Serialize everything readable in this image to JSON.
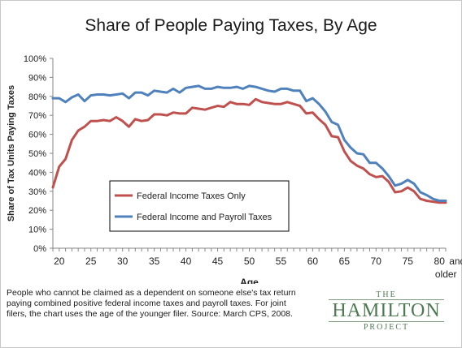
{
  "chart_data": {
    "type": "line",
    "title": "Share of People Paying Taxes, By Age",
    "xlabel": "Age",
    "ylabel": "Share of Tax Units Paying Taxes",
    "ylim": [
      0,
      100
    ],
    "xlim": [
      19,
      81
    ],
    "yticks": [
      0,
      10,
      20,
      30,
      40,
      50,
      60,
      70,
      80,
      90,
      100
    ],
    "ytick_labels": [
      "0%",
      "10%",
      "20%",
      "30%",
      "40%",
      "50%",
      "60%",
      "70%",
      "80%",
      "90%",
      "100%"
    ],
    "xticks": [
      20,
      25,
      30,
      35,
      40,
      45,
      50,
      55,
      60,
      65,
      70,
      75,
      80
    ],
    "xtick_labels": [
      "20",
      "25",
      "30",
      "35",
      "40",
      "45",
      "50",
      "55",
      "60",
      "65",
      "70",
      "75",
      "80"
    ],
    "last_tick_suffix": "and",
    "last_tick_suffix2": "older",
    "grid": false,
    "legend_position": "inside-lower-left",
    "x": [
      19,
      20,
      21,
      22,
      23,
      24,
      25,
      26,
      27,
      28,
      29,
      30,
      31,
      32,
      33,
      34,
      35,
      36,
      37,
      38,
      39,
      40,
      41,
      42,
      43,
      44,
      45,
      46,
      47,
      48,
      49,
      50,
      51,
      52,
      53,
      54,
      55,
      56,
      57,
      58,
      59,
      60,
      61,
      62,
      63,
      64,
      65,
      66,
      67,
      68,
      69,
      70,
      71,
      72,
      73,
      74,
      75,
      76,
      77,
      78,
      79,
      80,
      81
    ],
    "series": [
      {
        "name": "Federal Income Taxes Only",
        "color": "#c0504d",
        "values": [
          32,
          43,
          47,
          57,
          62,
          64,
          67,
          67,
          67.5,
          67,
          69,
          67,
          64,
          68,
          67,
          67.5,
          70.5,
          70.5,
          70,
          71.5,
          71,
          71,
          74,
          73.5,
          73,
          74,
          75,
          74.5,
          77,
          76,
          76,
          75.5,
          78.5,
          77,
          76.5,
          76,
          76,
          77,
          76,
          75,
          71,
          71.5,
          68,
          65,
          59,
          58.5,
          51,
          46,
          43.5,
          42,
          39,
          37.5,
          38,
          35,
          29.5,
          30,
          32,
          30,
          26,
          25,
          24.5,
          24,
          24
        ]
      },
      {
        "name": "Federal Income and Payroll Taxes",
        "color": "#4f81bd",
        "values": [
          79,
          79,
          77,
          79.5,
          81,
          77.5,
          80.5,
          81,
          81,
          80.5,
          81,
          81.5,
          79,
          82,
          82,
          80.5,
          83,
          82.5,
          82,
          84,
          82,
          84.5,
          85,
          85.5,
          84,
          84,
          85,
          84.5,
          84.5,
          85,
          84,
          85.5,
          85,
          84,
          83,
          82.5,
          84,
          84,
          83,
          83,
          77.5,
          79,
          76,
          72,
          66.5,
          65,
          57,
          53,
          50,
          49.5,
          45,
          45,
          42,
          38,
          33,
          34,
          36,
          34,
          29.5,
          28,
          26,
          25,
          25
        ]
      }
    ]
  },
  "footnote": "People who cannot be claimed as a dependent on someone else's tax return paying combined positive federal income taxes and payroll taxes. For joint filers, the chart uses the age of the younger filer. Source: March CPS, 2008.",
  "logo": {
    "line1": "THE",
    "line2": "HAMILTON",
    "line3": "PROJECT"
  }
}
